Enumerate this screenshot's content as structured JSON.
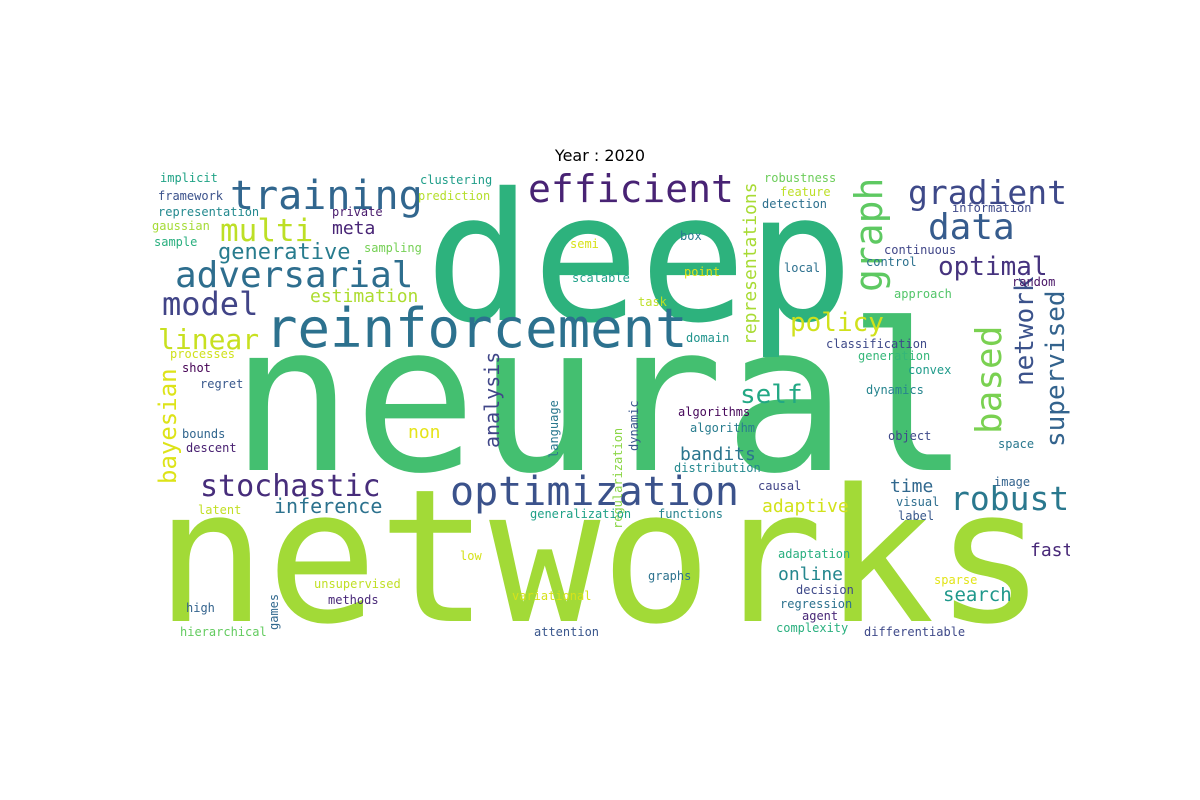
{
  "title": "Year : 2020",
  "words": [
    {
      "text": "neural",
      "color": "#44bf70"
    },
    {
      "text": "networks",
      "color": "#a2da37"
    },
    {
      "text": "deep",
      "color": "#2db27d"
    },
    {
      "text": "reinforcement",
      "color": "#2c718e"
    },
    {
      "text": "training",
      "color": "#31668e"
    },
    {
      "text": "efficient",
      "color": "#482374"
    },
    {
      "text": "optimization",
      "color": "#3b528b"
    },
    {
      "text": "adversarial",
      "color": "#2e6e8e"
    },
    {
      "text": "gradient",
      "color": "#3e4989"
    },
    {
      "text": "data",
      "color": "#365c8d"
    },
    {
      "text": "multi",
      "color": "#bddf26"
    },
    {
      "text": "model",
      "color": "#414487"
    },
    {
      "text": "stochastic",
      "color": "#472d7b"
    },
    {
      "text": "robust",
      "color": "#2a788e"
    },
    {
      "text": "graph",
      "color": "#5ec962"
    },
    {
      "text": "based",
      "color": "#7ad151"
    },
    {
      "text": "network",
      "color": "#3b528b"
    },
    {
      "text": "supervised",
      "color": "#33638d"
    },
    {
      "text": "optimal",
      "color": "#46337e"
    },
    {
      "text": "policy",
      "color": "#d0e11c"
    },
    {
      "text": "linear",
      "color": "#c8e020"
    },
    {
      "text": "self",
      "color": "#22a884"
    },
    {
      "text": "generative",
      "color": "#287c8e"
    },
    {
      "text": "bayesian",
      "color": "#dde318"
    },
    {
      "text": "inference",
      "color": "#2c728e"
    },
    {
      "text": "estimation",
      "color": "#addc30"
    },
    {
      "text": "meta",
      "color": "#482576"
    },
    {
      "text": "representations",
      "color": "#a8db34"
    },
    {
      "text": "analysis",
      "color": "#404688"
    },
    {
      "text": "non",
      "color": "#e5e419"
    },
    {
      "text": "bandits",
      "color": "#2b758e"
    },
    {
      "text": "adaptive",
      "color": "#d2e21b"
    },
    {
      "text": "time",
      "color": "#31688e"
    },
    {
      "text": "online",
      "color": "#24878e"
    },
    {
      "text": "search",
      "color": "#1f988b"
    },
    {
      "text": "fast",
      "color": "#482878"
    },
    {
      "text": "implicit",
      "color": "#20a386"
    },
    {
      "text": "framework",
      "color": "#3b528b"
    },
    {
      "text": "representation",
      "color": "#23898e"
    },
    {
      "text": "gaussian",
      "color": "#a5db36"
    },
    {
      "text": "sample",
      "color": "#29af7f"
    },
    {
      "text": "clustering",
      "color": "#1f9e89"
    },
    {
      "text": "prediction",
      "color": "#b5de2b"
    },
    {
      "text": "private",
      "color": "#481a6c"
    },
    {
      "text": "sampling",
      "color": "#75d054"
    },
    {
      "text": "robustness",
      "color": "#6ccd5a"
    },
    {
      "text": "feature",
      "color": "#bddf26"
    },
    {
      "text": "detection",
      "color": "#2d708e"
    },
    {
      "text": "information",
      "color": "#3e4989"
    },
    {
      "text": "semi",
      "color": "#d8e219"
    },
    {
      "text": "box",
      "color": "#287c8e"
    },
    {
      "text": "continuous",
      "color": "#404688"
    },
    {
      "text": "control",
      "color": "#2c718e"
    },
    {
      "text": "scalable",
      "color": "#1fa188"
    },
    {
      "text": "point",
      "color": "#dde318"
    },
    {
      "text": "local",
      "color": "#2d708e"
    },
    {
      "text": "random",
      "color": "#471365"
    },
    {
      "text": "approach",
      "color": "#52c569"
    },
    {
      "text": "task",
      "color": "#bddf26"
    },
    {
      "text": "domain",
      "color": "#1f948c"
    },
    {
      "text": "classification",
      "color": "#3e4989"
    },
    {
      "text": "generation",
      "color": "#35b779"
    },
    {
      "text": "processes",
      "color": "#d0e11c"
    },
    {
      "text": "shot",
      "color": "#440154"
    },
    {
      "text": "regret",
      "color": "#38588c"
    },
    {
      "text": "convex",
      "color": "#1e9b8a"
    },
    {
      "text": "dynamics",
      "color": "#25848e"
    },
    {
      "text": "language",
      "color": "#2a788e"
    },
    {
      "text": "regularization",
      "color": "#8bd646"
    },
    {
      "text": "dynamic",
      "color": "#39568c"
    },
    {
      "text": "algorithms",
      "color": "#46075a"
    },
    {
      "text": "algorithm",
      "color": "#287c8e"
    },
    {
      "text": "bounds",
      "color": "#31668e"
    },
    {
      "text": "descent",
      "color": "#482071"
    },
    {
      "text": "object",
      "color": "#3e4989"
    },
    {
      "text": "space",
      "color": "#2a788e"
    },
    {
      "text": "distribution",
      "color": "#23888e"
    },
    {
      "text": "image",
      "color": "#33638d"
    },
    {
      "text": "causal",
      "color": "#414487"
    },
    {
      "text": "visual",
      "color": "#2e6e8e"
    },
    {
      "text": "label",
      "color": "#38588c"
    },
    {
      "text": "latent",
      "color": "#c2df23"
    },
    {
      "text": "generalization",
      "color": "#1fa187"
    },
    {
      "text": "functions",
      "color": "#26828e"
    },
    {
      "text": "low",
      "color": "#d5e21a"
    },
    {
      "text": "adaptation",
      "color": "#29af7f"
    },
    {
      "text": "games",
      "color": "#31688e"
    },
    {
      "text": "unsupervised",
      "color": "#c0df25"
    },
    {
      "text": "methods",
      "color": "#482878"
    },
    {
      "text": "graphs",
      "color": "#2c728e"
    },
    {
      "text": "sparse",
      "color": "#e2e418"
    },
    {
      "text": "decision",
      "color": "#3e4989"
    },
    {
      "text": "regression",
      "color": "#2c718e"
    },
    {
      "text": "agent",
      "color": "#482777"
    },
    {
      "text": "high",
      "color": "#33638d"
    },
    {
      "text": "complexity",
      "color": "#2ab07f"
    },
    {
      "text": "differentiable",
      "color": "#3e4989"
    },
    {
      "text": "hierarchical",
      "color": "#63cb5f"
    },
    {
      "text": "attention",
      "color": "#39568c"
    },
    {
      "text": "variational",
      "color": "#d6e21a"
    }
  ]
}
